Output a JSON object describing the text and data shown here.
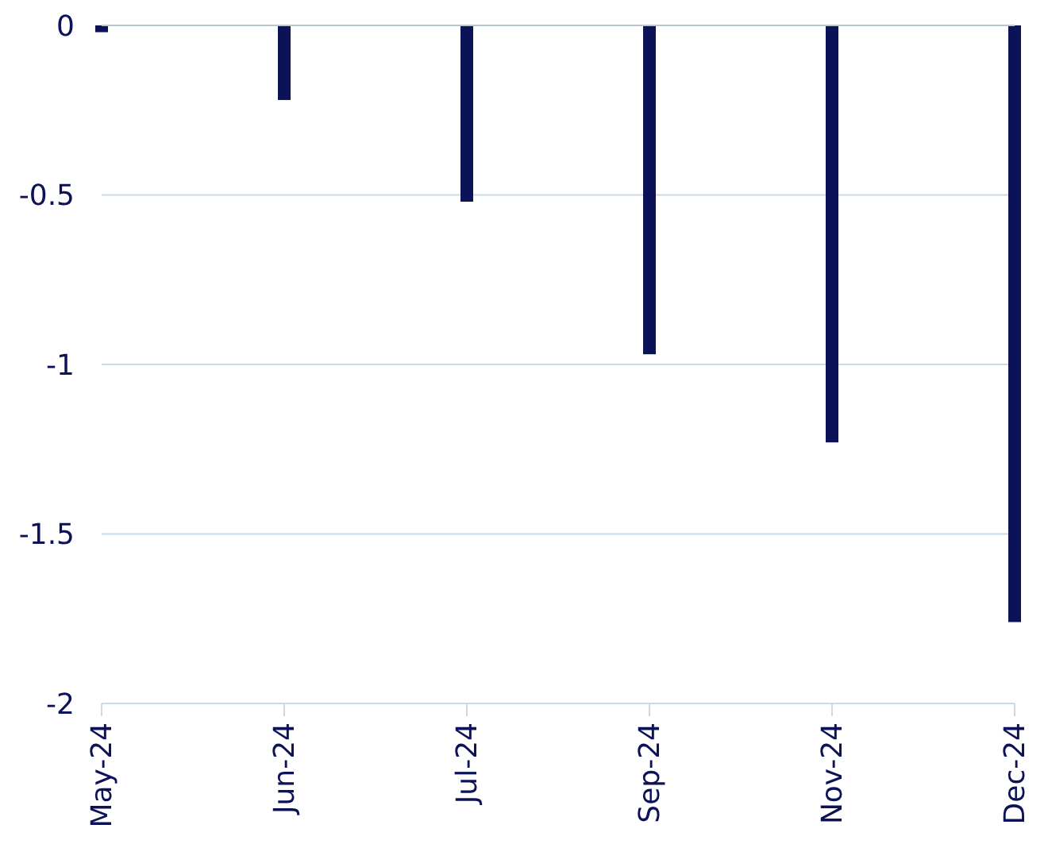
{
  "chart_data": {
    "type": "bar",
    "categories": [
      "May-24",
      "Jun-24",
      "Jul-24",
      "Sep-24",
      "Nov-24",
      "Dec-24"
    ],
    "values": [
      -0.02,
      -0.22,
      -0.52,
      -0.97,
      -1.23,
      -1.76
    ],
    "color": "#0b1257",
    "ylim": [
      -2,
      0
    ],
    "yticks": [
      -2,
      -1.5,
      -1,
      -0.5,
      0
    ],
    "grid": "y"
  }
}
